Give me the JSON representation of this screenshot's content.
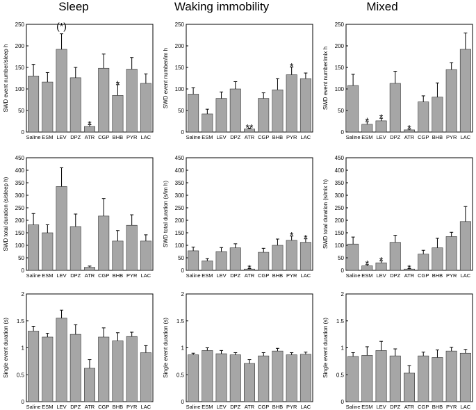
{
  "column_titles": [
    "Sleep",
    "Waking immobility",
    "Mixed"
  ],
  "chart_data": [
    {
      "id": "sleep-number",
      "type": "bar",
      "title": "Sleep",
      "xlabel": "",
      "ylabel": "SWD event number/sleep h",
      "categories": [
        "Saline",
        "ESM",
        "LEV",
        "DPZ",
        "ATR",
        "CGP",
        "BHB",
        "PYR",
        "LAC"
      ],
      "values": [
        130,
        116,
        192,
        126,
        13,
        148,
        85,
        146,
        113
      ],
      "errors": [
        27,
        22,
        36,
        24,
        4,
        33,
        25,
        27,
        22
      ],
      "annotations": [
        "",
        "",
        "(*)",
        "",
        "*",
        "",
        "*",
        "",
        ""
      ],
      "ylim": [
        0,
        250
      ],
      "yticks": [
        "0",
        "50",
        "100",
        "150",
        "200",
        "250"
      ],
      "bar_color": "#a6a6a6"
    },
    {
      "id": "wake-number",
      "type": "bar",
      "title": "Waking immobility",
      "xlabel": "",
      "ylabel": "SWD event number/im h",
      "categories": [
        "Saline",
        "ESM",
        "LEV",
        "DPZ",
        "ATR",
        "CGP",
        "BHB",
        "PYR",
        "LAC"
      ],
      "values": [
        88,
        42,
        78,
        100,
        7,
        78,
        98,
        133,
        124
      ],
      "errors": [
        15,
        11,
        15,
        17,
        2,
        13,
        26,
        18,
        13
      ],
      "annotations": [
        "",
        "",
        "",
        "",
        "**",
        "",
        "",
        "*",
        ""
      ],
      "ylim": [
        0,
        250
      ],
      "yticks": [
        "0",
        "50",
        "100",
        "150",
        "200",
        "250"
      ],
      "bar_color": "#a6a6a6"
    },
    {
      "id": "mixed-number",
      "type": "bar",
      "title": "Mixed",
      "xlabel": "",
      "ylabel": "SWD event number/mix h",
      "categories": [
        "Saline",
        "ESM",
        "LEV",
        "DPZ",
        "ATR",
        "CGP",
        "BHB",
        "PYR",
        "LAC"
      ],
      "values": [
        108,
        18,
        26,
        113,
        5,
        70,
        81,
        145,
        192
      ],
      "errors": [
        26,
        6,
        6,
        28,
        2,
        14,
        33,
        16,
        38
      ],
      "annotations": [
        "",
        "*",
        "*",
        "",
        "*",
        "",
        "",
        "",
        ""
      ],
      "ylim": [
        0,
        250
      ],
      "yticks": [
        "0",
        "50",
        "100",
        "150",
        "200",
        "250"
      ],
      "bar_color": "#a6a6a6"
    },
    {
      "id": "sleep-duration",
      "type": "bar",
      "xlabel": "",
      "ylabel": "SWD total duration (s/sleep h)",
      "categories": [
        "Saline",
        "ESM",
        "LEV",
        "DPZ",
        "ATR",
        "CGP",
        "BHB",
        "PYR",
        "LAC"
      ],
      "values": [
        182,
        150,
        335,
        175,
        12,
        217,
        117,
        180,
        117
      ],
      "errors": [
        45,
        32,
        75,
        50,
        5,
        70,
        42,
        42,
        25
      ],
      "annotations": [
        "",
        "",
        "",
        "",
        "",
        "",
        "",
        "",
        ""
      ],
      "ylim": [
        0,
        450
      ],
      "yticks": [
        "0",
        "50",
        "100",
        "150",
        "200",
        "250",
        "300",
        "350",
        "400",
        "450"
      ],
      "bar_color": "#a6a6a6"
    },
    {
      "id": "wake-duration",
      "type": "bar",
      "xlabel": "",
      "ylabel": "SWD total duration (s/im h)",
      "categories": [
        "Saline",
        "ESM",
        "LEV",
        "DPZ",
        "ATR",
        "CGP",
        "BHB",
        "PYR",
        "LAC"
      ],
      "values": [
        78,
        38,
        75,
        90,
        5,
        72,
        100,
        120,
        112
      ],
      "errors": [
        15,
        9,
        16,
        16,
        2,
        16,
        25,
        17,
        14
      ],
      "annotations": [
        "",
        "",
        "",
        "",
        "*",
        "",
        "",
        "*",
        "*"
      ],
      "ylim": [
        0,
        450
      ],
      "yticks": [
        "0",
        "50",
        "100",
        "150",
        "200",
        "250",
        "300",
        "350",
        "400",
        "450"
      ],
      "bar_color": "#a6a6a6"
    },
    {
      "id": "mixed-duration",
      "type": "bar",
      "xlabel": "",
      "ylabel": "SWD total duration (s/mix h)",
      "categories": [
        "Saline",
        "ESM",
        "LEV",
        "DPZ",
        "ATR",
        "CGP",
        "BHB",
        "PYR",
        "LAC"
      ],
      "values": [
        105,
        18,
        30,
        112,
        5,
        65,
        90,
        135,
        195
      ],
      "errors": [
        28,
        5,
        8,
        28,
        2,
        15,
        38,
        17,
        60
      ],
      "annotations": [
        "",
        "*",
        "*",
        "",
        "*",
        "",
        "",
        "",
        ""
      ],
      "ylim": [
        0,
        450
      ],
      "yticks": [
        "0",
        "50",
        "100",
        "150",
        "200",
        "250",
        "300",
        "350",
        "400",
        "450"
      ],
      "bar_color": "#a6a6a6"
    },
    {
      "id": "sleep-single",
      "type": "bar",
      "xlabel": "",
      "ylabel": "Single event duration (s)",
      "categories": [
        "Saline",
        "ESM",
        "LEV",
        "DPZ",
        "ATR",
        "CGP",
        "BHB",
        "PYR",
        "LAC"
      ],
      "values": [
        1.31,
        1.2,
        1.55,
        1.25,
        0.62,
        1.2,
        1.13,
        1.21,
        0.91
      ],
      "errors": [
        0.09,
        0.07,
        0.15,
        0.18,
        0.16,
        0.17,
        0.15,
        0.08,
        0.13
      ],
      "annotations": [
        "",
        "",
        "",
        "",
        "",
        "",
        "",
        "",
        ""
      ],
      "ylim": [
        0,
        2
      ],
      "yticks": [
        "0",
        "0.5",
        "1",
        "1.5",
        "2"
      ],
      "bar_color": "#a6a6a6"
    },
    {
      "id": "wake-single",
      "type": "bar",
      "xlabel": "",
      "ylabel": "Single event duration (s)",
      "categories": [
        "Saline",
        "ESM",
        "LEV",
        "DPZ",
        "ATR",
        "CGP",
        "BHB",
        "PYR",
        "LAC"
      ],
      "values": [
        0.87,
        0.95,
        0.89,
        0.87,
        0.71,
        0.85,
        0.94,
        0.87,
        0.88
      ],
      "errors": [
        0.03,
        0.05,
        0.06,
        0.04,
        0.07,
        0.06,
        0.05,
        0.04,
        0.04
      ],
      "annotations": [
        "",
        "",
        "",
        "",
        "",
        "",
        "",
        "",
        ""
      ],
      "ylim": [
        0,
        2
      ],
      "yticks": [
        "0",
        "0.5",
        "1",
        "1.5",
        "2"
      ],
      "bar_color": "#a6a6a6"
    },
    {
      "id": "mixed-single",
      "type": "bar",
      "xlabel": "",
      "ylabel": "Single event duration (s)",
      "categories": [
        "Saline",
        "ESM",
        "LEV",
        "DPZ",
        "ATR",
        "CGP",
        "BHB",
        "PYR",
        "LAC"
      ],
      "values": [
        0.84,
        0.86,
        0.95,
        0.85,
        0.53,
        0.85,
        0.82,
        0.94,
        0.9
      ],
      "errors": [
        0.07,
        0.16,
        0.17,
        0.13,
        0.14,
        0.07,
        0.14,
        0.07,
        0.07
      ],
      "annotations": [
        "",
        "",
        "",
        "",
        "",
        "",
        "",
        "",
        ""
      ],
      "ylim": [
        0,
        2
      ],
      "yticks": [
        "0",
        "0.5",
        "1",
        "1.5",
        "2"
      ],
      "bar_color": "#a6a6a6"
    }
  ]
}
